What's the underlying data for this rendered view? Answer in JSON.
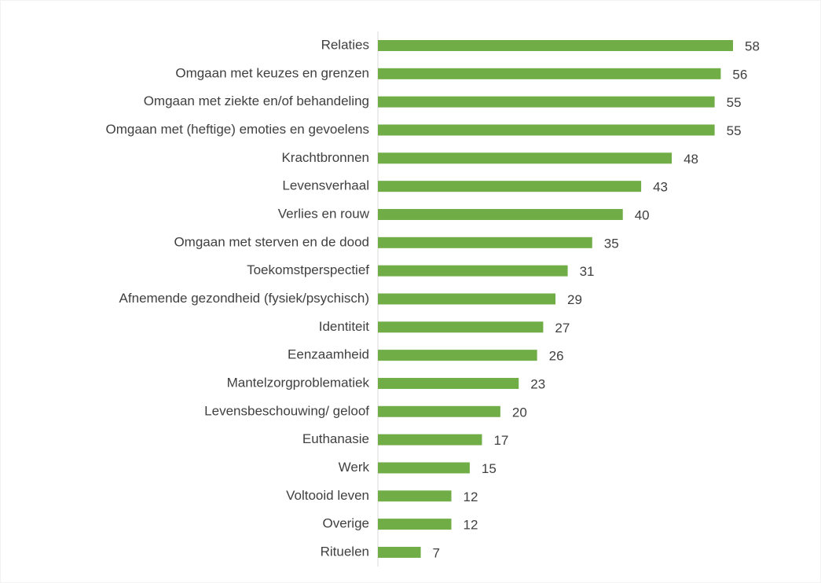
{
  "chart_data": {
    "type": "bar",
    "orientation": "horizontal",
    "categories": [
      "Relaties",
      "Omgaan met keuzes en grenzen",
      "Omgaan met ziekte en/of behandeling",
      "Omgaan met (heftige) emoties en gevoelens",
      "Krachtbronnen",
      "Levensverhaal",
      "Verlies en rouw",
      "Omgaan met sterven en de dood",
      "Toekomstperspectief",
      "Afnemende gezondheid (fysiek/psychisch)",
      "Identiteit",
      "Eenzaamheid",
      "Mantelzorgproblematiek",
      "Levensbeschouwing/ geloof",
      "Euthanasie",
      "Werk",
      "Voltooid leven",
      "Overige",
      "Rituelen"
    ],
    "values": [
      58,
      56,
      55,
      55,
      48,
      43,
      40,
      35,
      31,
      29,
      27,
      26,
      23,
      20,
      17,
      15,
      12,
      12,
      7
    ],
    "color": "#70ad47"
  }
}
